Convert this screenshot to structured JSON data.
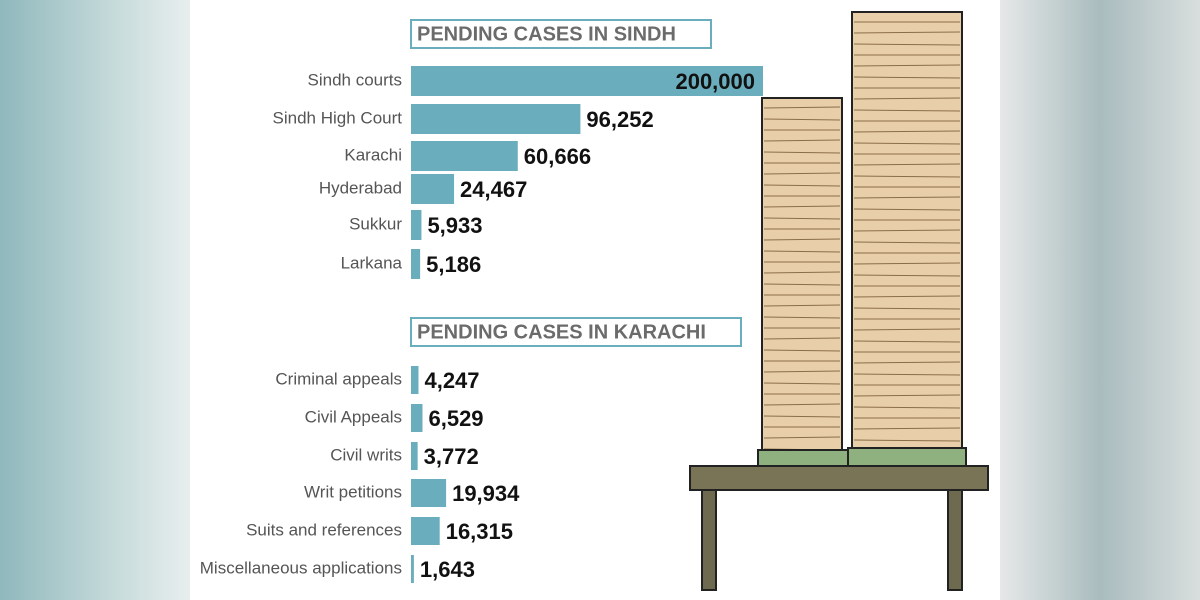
{
  "chart_data": [
    {
      "type": "bar",
      "orientation": "horizontal",
      "title": "PENDING CASES IN SINDH",
      "color": "#6aaebd",
      "categories": [
        "Sindh courts",
        "Sindh High Court",
        "Karachi",
        "Hyderabad",
        "Sukkur",
        "Larkana"
      ],
      "values": [
        200000,
        96252,
        60666,
        24467,
        5933,
        5186
      ],
      "value_labels": [
        "200,000",
        "96,252",
        "60,666",
        "24,467",
        "5,933",
        "5,186"
      ]
    },
    {
      "type": "bar",
      "orientation": "horizontal",
      "title": "PENDING CASES IN KARACHI",
      "color": "#6aaebd",
      "categories": [
        "Criminal appeals",
        "Civil Appeals",
        "Civil writs",
        "Writ petitions",
        "Suits and references",
        "Miscellaneous applications"
      ],
      "values": [
        4247,
        6529,
        3772,
        19934,
        16315,
        1643
      ],
      "value_labels": [
        "4,247",
        "6,529",
        "3,772",
        "19,934",
        "16,315",
        "1,643"
      ]
    }
  ]
}
